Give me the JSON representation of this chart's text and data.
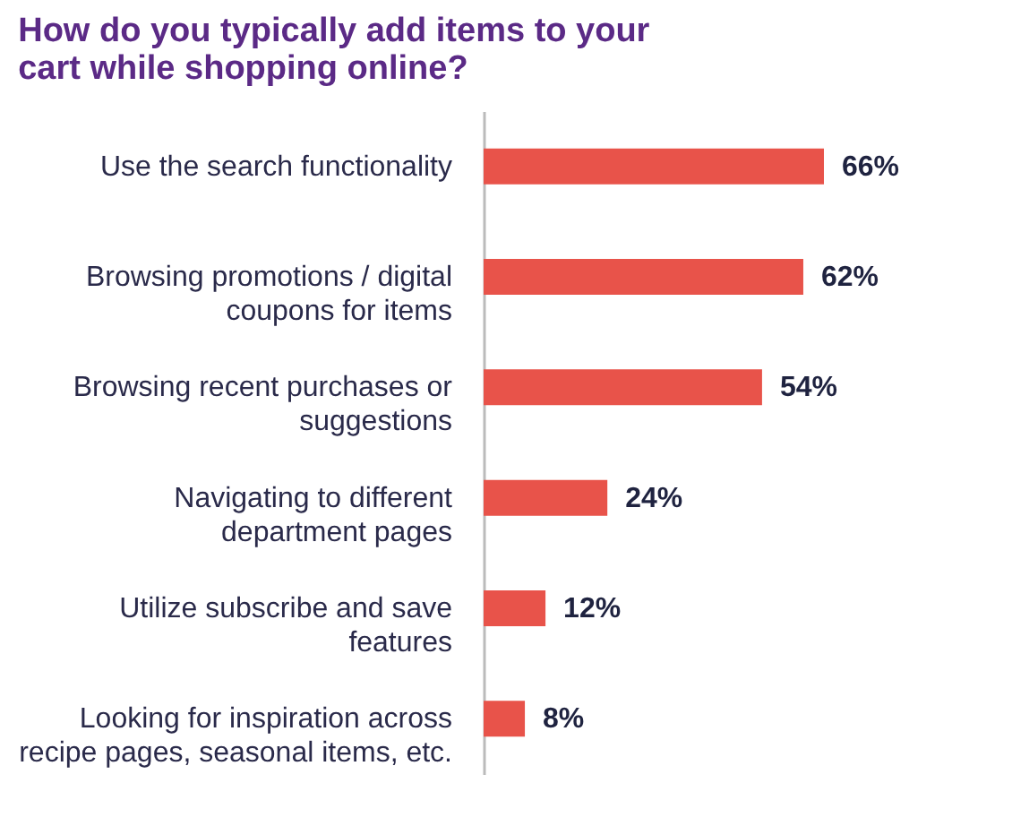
{
  "chart_data": {
    "type": "bar",
    "orientation": "horizontal",
    "title": "How do you typically add items to your cart while shopping online?",
    "categories": [
      "Use the search functionality",
      "Browsing promotions / digital coupons for items",
      "Browsing recent purchases or suggestions",
      "Navigating to different department pages",
      "Utilize subscribe and save features",
      "Looking for inspiration across recipe pages, seasonal items, etc."
    ],
    "values": [
      66,
      62,
      54,
      24,
      12,
      8
    ],
    "value_labels": [
      "66%",
      "62%",
      "54%",
      "24%",
      "12%",
      "8%"
    ],
    "color": "#e8534a"
  }
}
